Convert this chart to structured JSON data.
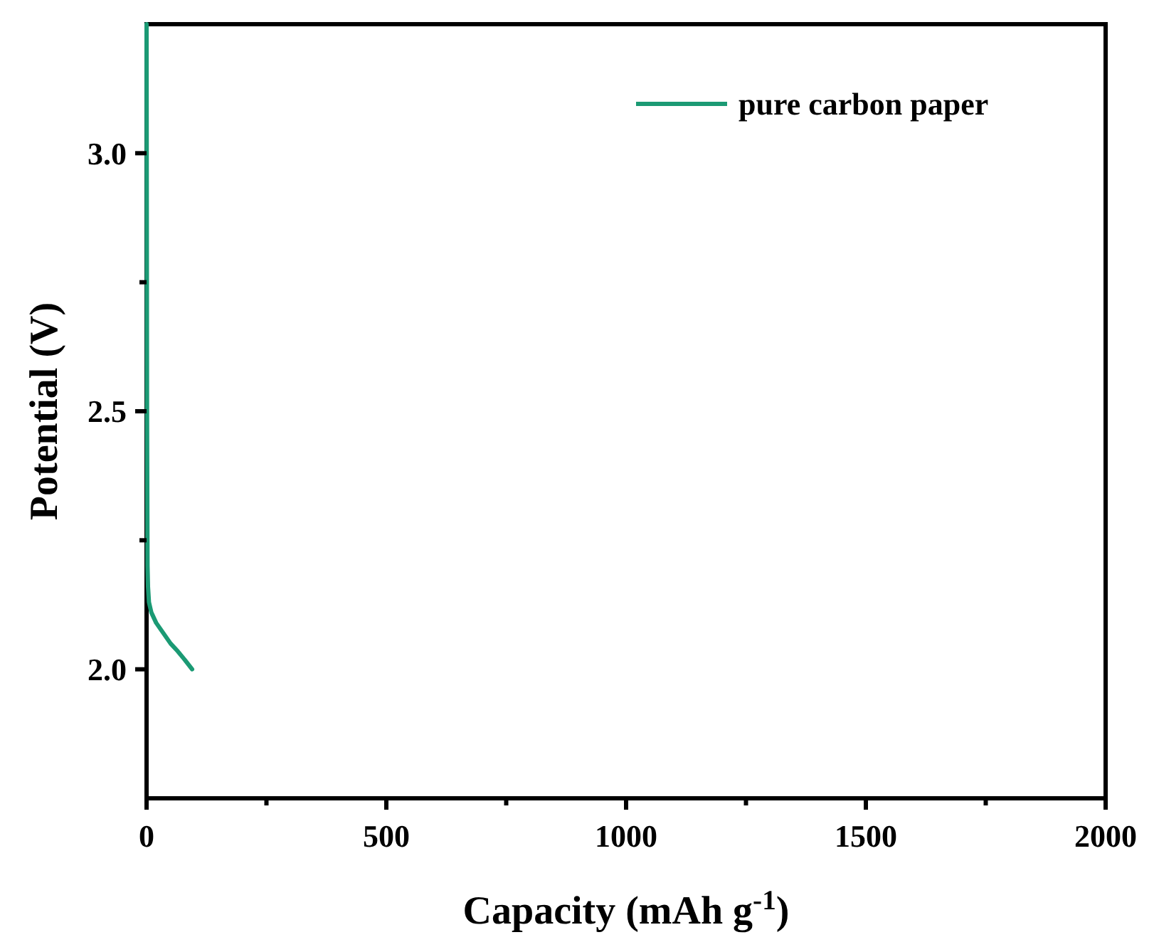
{
  "chart_data": {
    "type": "line",
    "xlabel": "Capacity (mAh g$^{-1}$)",
    "ylabel": "Potential (V)",
    "xlim": [
      0,
      2000
    ],
    "ylim": [
      1.75,
      3.25
    ],
    "xticks": [
      0,
      {
        "value": 250,
        "label": null
      },
      500,
      {
        "value": 750,
        "label": null
      },
      1000,
      {
        "value": 1250,
        "label": null
      },
      1500,
      {
        "value": 1750,
        "label": null
      },
      2000
    ],
    "yticks": [
      {
        "value": 2.25,
        "label": null
      },
      {
        "value": 2.75,
        "label": null
      },
      {
        "value": 2.0,
        "label": "2.0"
      },
      {
        "value": 2.5,
        "label": "2.5"
      },
      {
        "value": 3.0,
        "label": "3.0"
      }
    ],
    "legend": "top right",
    "grid": false,
    "series": [
      {
        "name": "pure carbon paper",
        "color": "#1b9a74",
        "x": [
          0,
          1,
          2,
          3,
          5,
          10,
          20,
          35,
          50,
          65,
          80,
          95
        ],
        "values": [
          3.25,
          2.5,
          2.2,
          2.16,
          2.13,
          2.11,
          2.09,
          2.07,
          2.05,
          2.035,
          2.018,
          2.0
        ]
      }
    ]
  }
}
